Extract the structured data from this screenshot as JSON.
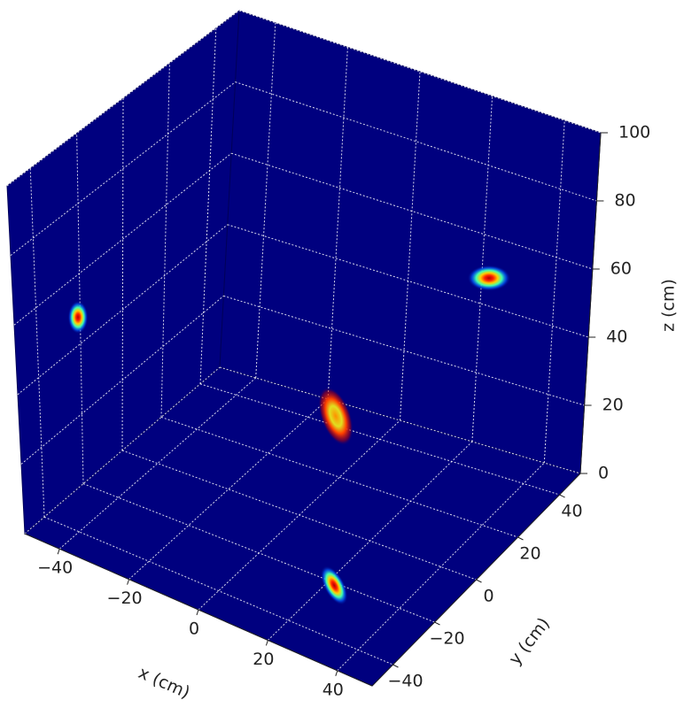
{
  "chart_data": {
    "type": "projection3d",
    "xlabel": "x (cm)",
    "ylabel": "y (cm)",
    "zlabel": "z (cm)",
    "xlim": [
      -50,
      50
    ],
    "ylim": [
      -50,
      50
    ],
    "zlim": [
      0,
      100
    ],
    "xticks": [
      {
        "value": -40,
        "label": "−40"
      },
      {
        "value": -20,
        "label": "−20"
      },
      0,
      20,
      40
    ],
    "yticks": [
      {
        "value": -40,
        "label": "−40"
      },
      {
        "value": -20,
        "label": "−20"
      },
      0,
      20,
      40
    ],
    "zticks": [
      0,
      20,
      40,
      60,
      80,
      100
    ],
    "grid": true,
    "color": "#00007f",
    "center": {
      "x": 22,
      "y": -21,
      "z": 48
    },
    "sigma": {
      "x": 4,
      "y": 3,
      "z": 7
    }
  }
}
